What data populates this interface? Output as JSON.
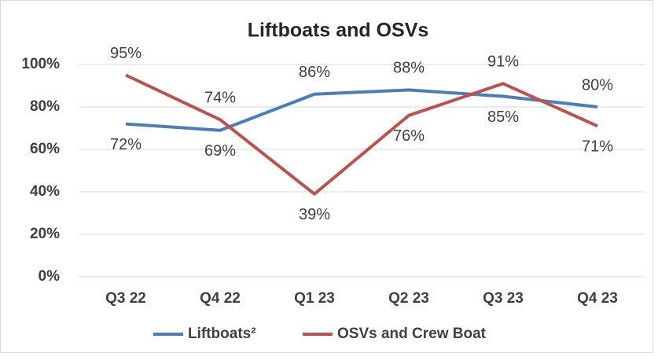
{
  "chart_data": {
    "type": "line",
    "title": "Liftboats and OSVs",
    "categories": [
      "Q3 22",
      "Q4 22",
      "Q1 23",
      "Q2 23",
      "Q3 23",
      "Q4 23"
    ],
    "series": [
      {
        "name": "Liftboats²",
        "color": "#4a7ebb",
        "values": [
          72,
          69,
          86,
          88,
          85,
          80
        ],
        "value_labels": [
          "72%",
          "69%",
          "86%",
          "88%",
          "85%",
          "80%"
        ]
      },
      {
        "name": "OSVs and Crew Boat",
        "color": "#c0504d",
        "values": [
          95,
          74,
          39,
          76,
          91,
          71
        ],
        "value_labels": [
          "95%",
          "74%",
          "39%",
          "76%",
          "91%",
          "71%"
        ]
      }
    ],
    "ylim": [
      0,
      100
    ],
    "yticks": [
      {
        "value": 0,
        "label": "0%"
      },
      {
        "value": 20,
        "label": "20%"
      },
      {
        "value": 40,
        "label": "40%"
      },
      {
        "value": 60,
        "label": "60%"
      },
      {
        "value": 80,
        "label": "80%"
      },
      {
        "value": 100,
        "label": "100%"
      }
    ],
    "grid": true,
    "legend": "bottom"
  }
}
